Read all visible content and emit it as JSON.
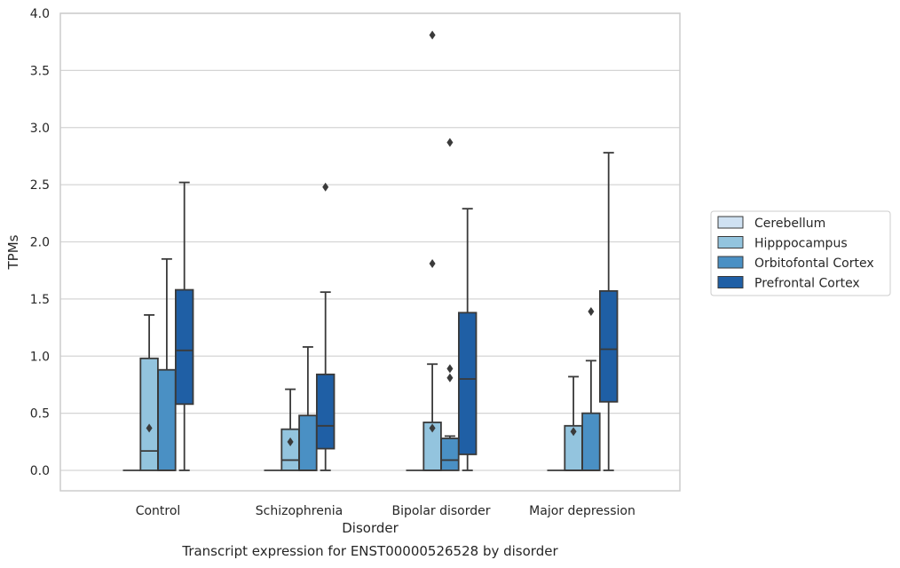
{
  "chart_data": {
    "type": "box",
    "xlabel": "Disorder",
    "ylabel": "TPMs",
    "caption": "Transcript expression for ENST00000526528 by disorder",
    "ylim": [
      -0.18,
      4.0
    ],
    "yticks": [
      "0.0",
      "0.5",
      "1.0",
      "1.5",
      "2.0",
      "2.5",
      "3.0",
      "3.5",
      "4.0"
    ],
    "grid": true,
    "legend_position": "right",
    "categories": [
      "Control",
      "Schizophrenia",
      "Bipolar disorder",
      "Major depression"
    ],
    "series": [
      {
        "name": "Cerebellum",
        "color": "#cfe1f2",
        "boxes": [
          {
            "min": 0,
            "q1": 0,
            "median": 0,
            "q3": 0,
            "max": 0,
            "outliers": []
          },
          {
            "min": 0,
            "q1": 0,
            "median": 0,
            "q3": 0,
            "max": 0,
            "outliers": []
          },
          {
            "min": 0,
            "q1": 0,
            "median": 0,
            "q3": 0,
            "max": 0,
            "outliers": []
          },
          {
            "min": 0,
            "q1": 0,
            "median": 0,
            "q3": 0,
            "max": 0,
            "outliers": []
          }
        ]
      },
      {
        "name": "Hipppocampus",
        "color": "#93c4de",
        "boxes": [
          {
            "min": 0,
            "q1": 0,
            "median": 0.17,
            "q3": 0.98,
            "max": 1.36,
            "outliers": [
              0.37
            ]
          },
          {
            "min": 0,
            "q1": 0,
            "median": 0.09,
            "q3": 0.36,
            "max": 0.71,
            "outliers": [
              0.25
            ]
          },
          {
            "min": 0,
            "q1": 0,
            "median": 0,
            "q3": 0.42,
            "max": 0.93,
            "outliers": [
              0.37,
              1.81,
              3.81
            ]
          },
          {
            "min": 0,
            "q1": 0,
            "median": 0,
            "q3": 0.39,
            "max": 0.82,
            "outliers": [
              0.34
            ]
          }
        ]
      },
      {
        "name": "Orbitofontal Cortex",
        "color": "#4a90c4",
        "boxes": [
          {
            "min": 0,
            "q1": 0,
            "median": 0,
            "q3": 0.88,
            "max": 1.85,
            "outliers": []
          },
          {
            "min": 0,
            "q1": 0,
            "median": 0,
            "q3": 0.48,
            "max": 1.08,
            "outliers": []
          },
          {
            "min": 0,
            "q1": 0,
            "median": 0.09,
            "q3": 0.28,
            "max": 0.3,
            "outliers": [
              0.81,
              0.89,
              2.87
            ]
          },
          {
            "min": 0,
            "q1": 0,
            "median": 0,
            "q3": 0.5,
            "max": 0.96,
            "outliers": [
              1.39
            ]
          }
        ]
      },
      {
        "name": "Prefrontal Cortex",
        "color": "#1f5fa5",
        "boxes": [
          {
            "min": 0,
            "q1": 0.58,
            "median": 1.05,
            "q3": 1.58,
            "max": 2.52,
            "outliers": []
          },
          {
            "min": 0,
            "q1": 0.19,
            "median": 0.39,
            "q3": 0.84,
            "max": 1.56,
            "outliers": [
              2.48
            ]
          },
          {
            "min": 0,
            "q1": 0.14,
            "median": 0.8,
            "q3": 1.38,
            "max": 2.29,
            "outliers": []
          },
          {
            "min": 0,
            "q1": 0.6,
            "median": 1.06,
            "q3": 1.57,
            "max": 2.78,
            "outliers": []
          }
        ]
      }
    ]
  }
}
